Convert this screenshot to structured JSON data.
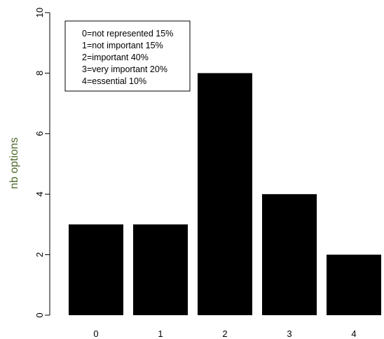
{
  "chart_data": {
    "type": "bar",
    "title": "",
    "xlabel": "",
    "ylabel": "nb options",
    "categories": [
      "0",
      "1",
      "2",
      "3",
      "4"
    ],
    "values": [
      3,
      3,
      8,
      4,
      2
    ],
    "ylim": [
      0,
      10
    ],
    "yticks": [
      "0",
      "2",
      "4",
      "6",
      "8",
      "10"
    ],
    "grid": false,
    "legend_position": "top-left",
    "legend": [
      "0=not represented 15%",
      "1=not important 15%",
      "2=important 40%",
      "3=very important 20%",
      "4=essential 10%"
    ],
    "colors": {
      "bar": "#000000",
      "ylabel": "#4f6a2b",
      "axis": "#000000"
    }
  }
}
